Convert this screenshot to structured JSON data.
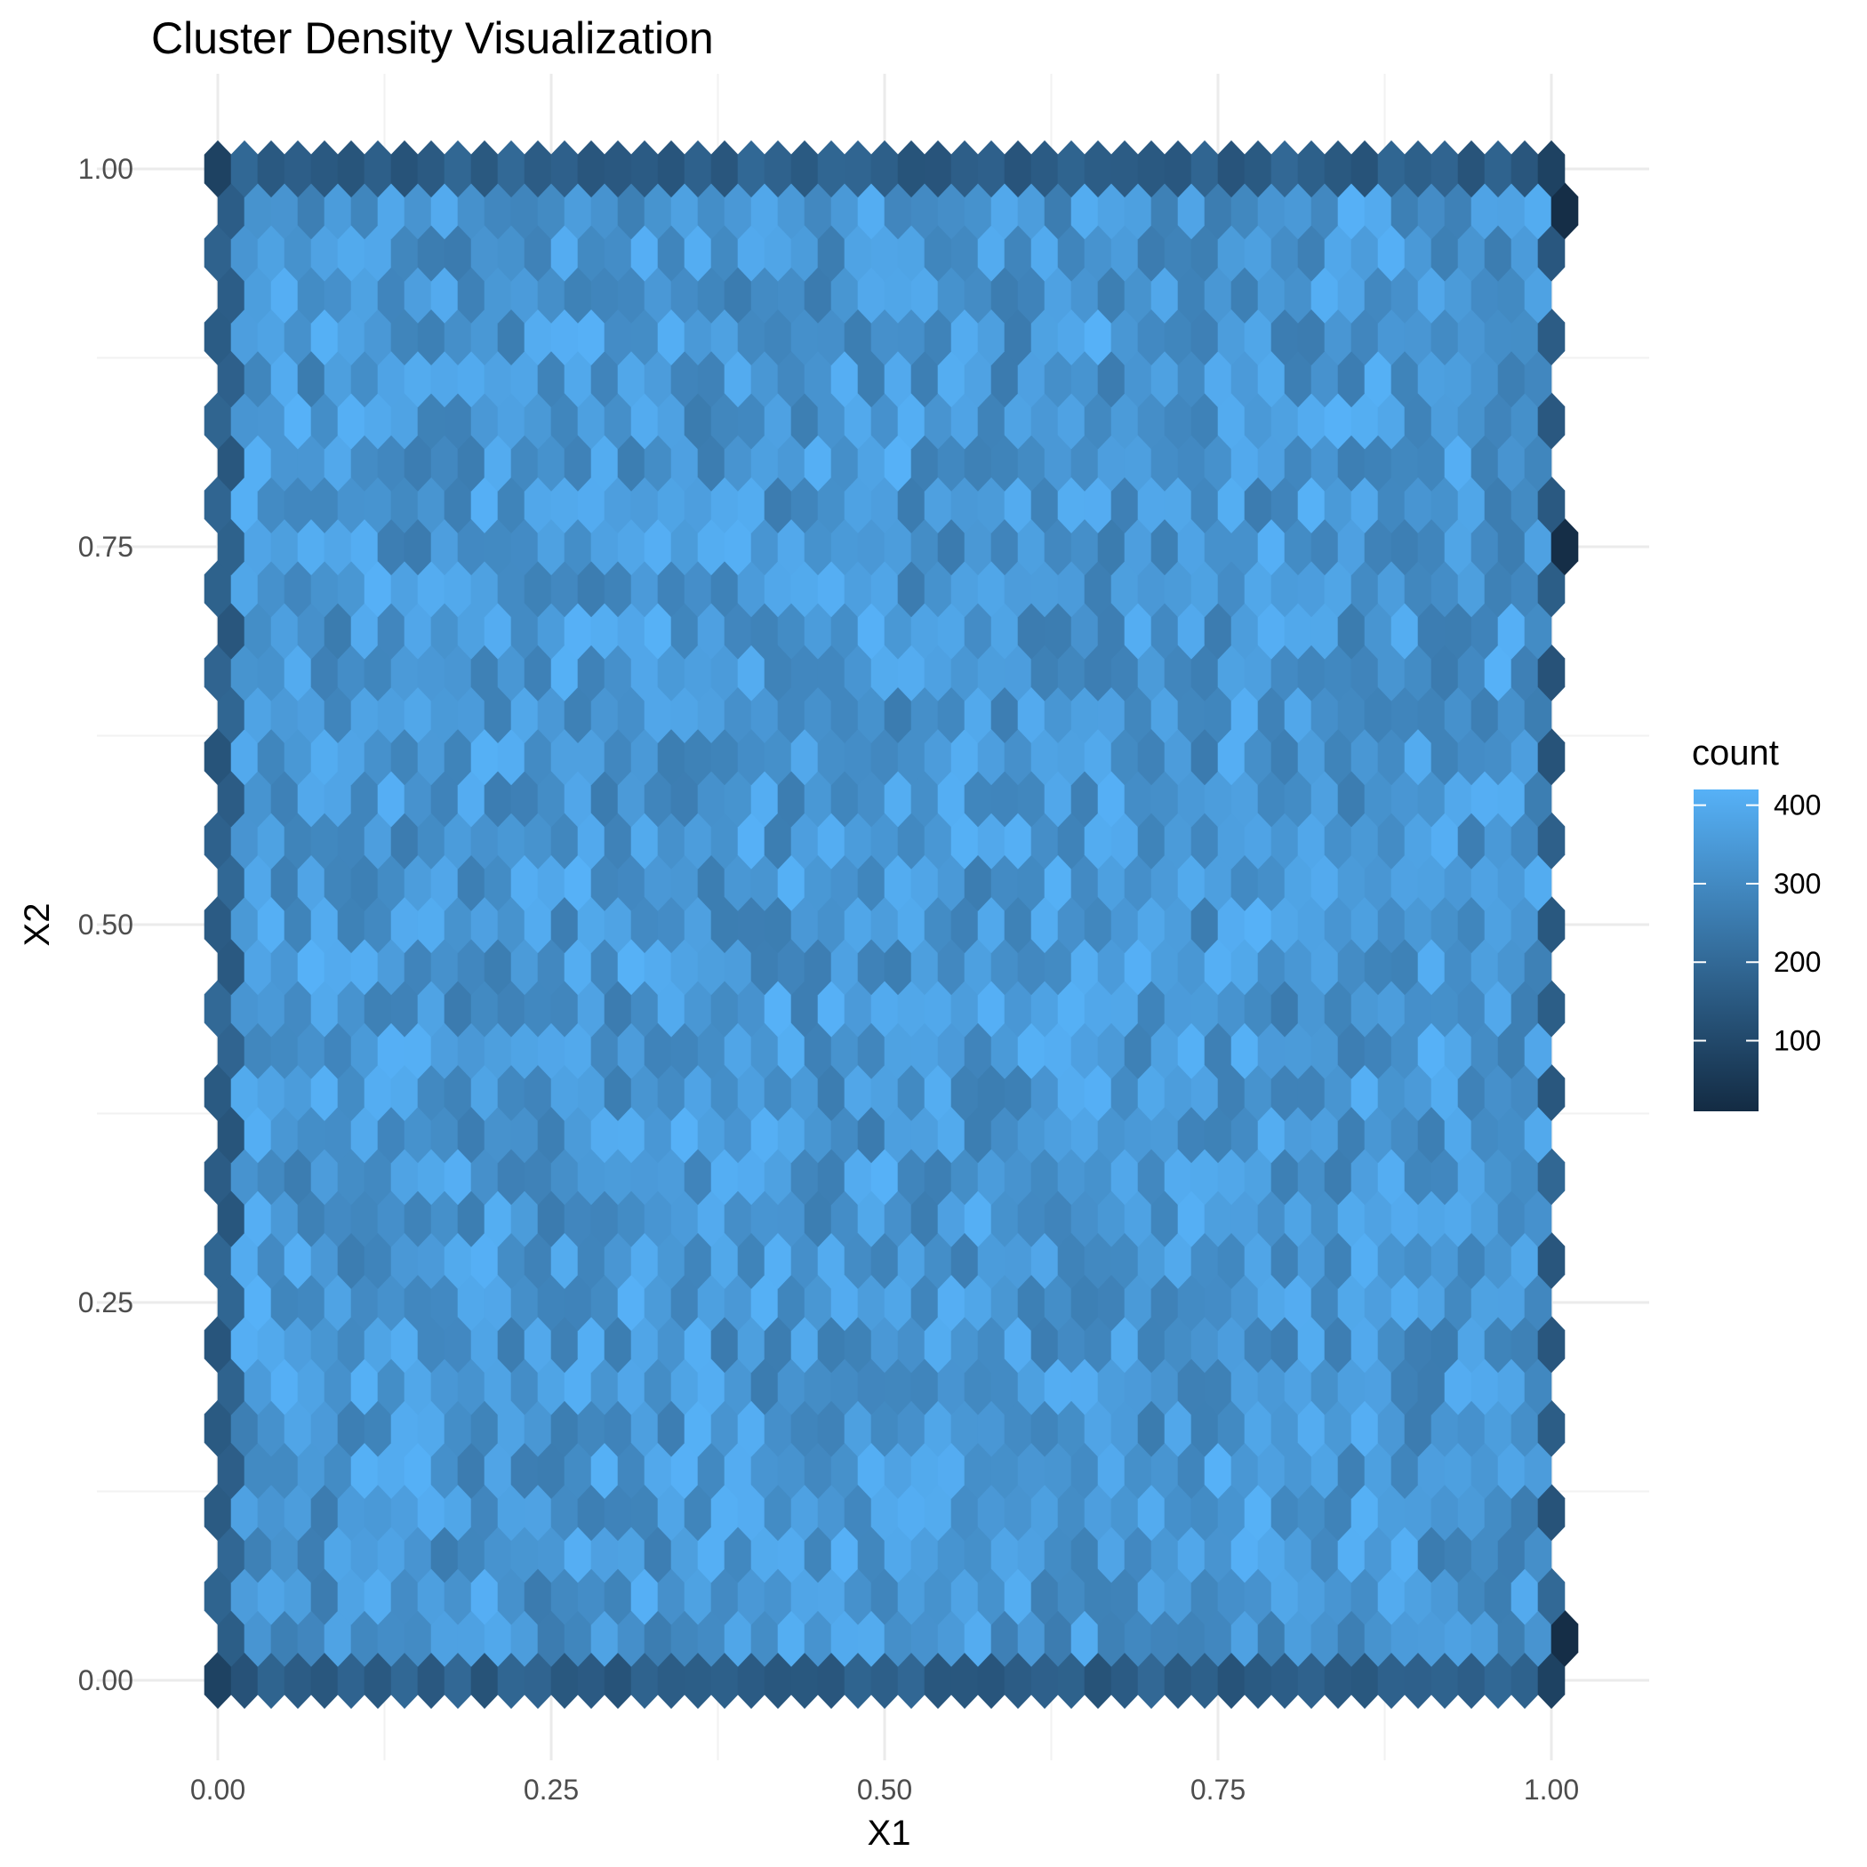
{
  "chart_data": {
    "type": "heatmap",
    "subtype": "hexbin",
    "title": "Cluster Density Visualization",
    "xlabel": "X1",
    "ylabel": "X2",
    "xlim": [
      -0.1,
      1.06
    ],
    "ylim": [
      -0.05,
      1.06
    ],
    "x_ticks": [
      0.0,
      0.25,
      0.5,
      0.75,
      1.0
    ],
    "x_tick_labels": [
      "0.00",
      "0.25",
      "0.50",
      "0.75",
      "1.00"
    ],
    "y_ticks": [
      0.0,
      0.25,
      0.5,
      0.75,
      1.0
    ],
    "y_tick_labels": [
      "0.00",
      "0.25",
      "0.50",
      "0.75",
      "1.00"
    ],
    "grid": true,
    "bins_x": 50,
    "bins_y": 37,
    "interior_count_range": [
      255,
      420
    ],
    "edge_count_range": [
      130,
      200
    ],
    "corner_count": 80,
    "legend": {
      "title": "count",
      "placement": "right",
      "tick_values": [
        100,
        200,
        300,
        400
      ],
      "tick_labels": [
        "100",
        "200",
        "300",
        "400"
      ],
      "range": [
        10,
        420
      ],
      "color_low": "#132B43",
      "color_high": "#56B1F7"
    }
  }
}
